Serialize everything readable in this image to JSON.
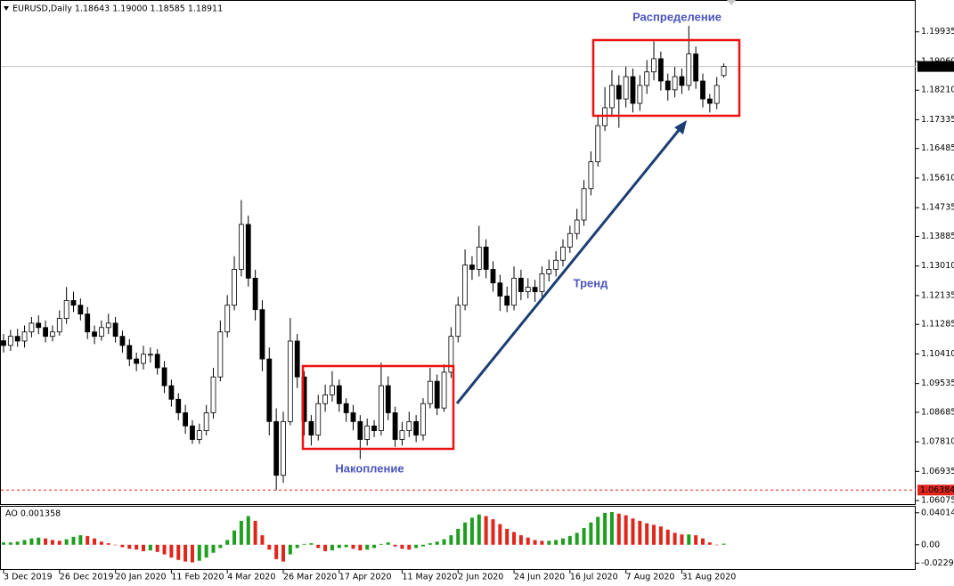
{
  "chart_data": {
    "type": "candlestick",
    "title": "EURUSD,Daily  1.18643 1.19000 1.18585 1.18911",
    "open": [
      1.108,
      1.1066,
      1.1093,
      1.1079,
      1.1106,
      1.1132,
      1.1119,
      1.1093,
      1.1106,
      1.1146,
      1.1199,
      1.1185,
      1.1159,
      1.1106,
      1.1093,
      1.1119,
      1.1132,
      1.1093,
      1.1066,
      1.1026,
      1.1013,
      1.104,
      1.104,
      1.1,
      1.0947,
      1.0907,
      1.0867,
      1.0828,
      1.0788,
      1.0814,
      1.0867,
      1.0973,
      1.1106,
      1.1185,
      1.1291,
      1.1424,
      1.1265,
      1.1172,
      1.1026,
      1.0841,
      1.0682,
      1.0841,
      1.1079,
      1.0973,
      1.0841,
      1.0801,
      1.0894,
      1.092,
      1.0947,
      1.0894,
      1.0867,
      1.0841,
      1.0788,
      1.0828,
      1.0814,
      1.0947,
      1.0867,
      1.0788,
      1.0814,
      1.0841,
      1.0801,
      1.0894,
      1.096,
      1.0881,
      1.0987,
      1.1093,
      1.1185,
      1.1304,
      1.1291,
      1.1357,
      1.1291,
      1.1251,
      1.1212,
      1.1185,
      1.1265,
      1.1225,
      1.1238,
      1.1225,
      1.1278,
      1.1291,
      1.1318,
      1.1357,
      1.1397,
      1.1437,
      1.153,
      1.1609,
      1.1716,
      1.1769,
      1.1835,
      1.1795,
      1.1861,
      1.1782,
      1.1835,
      1.1875,
      1.1914,
      1.1848,
      1.1822,
      1.1861,
      1.1835,
      1.1928,
      1.1848,
      1.1795,
      1.1782,
      1.18643
    ],
    "high": [
      1.11,
      1.1112,
      1.1115,
      1.1125,
      1.115,
      1.1155,
      1.114,
      1.1125,
      1.117,
      1.1239,
      1.1225,
      1.1205,
      1.118,
      1.1125,
      1.114,
      1.116,
      1.115,
      1.111,
      1.1085,
      1.1045,
      1.1065,
      1.106,
      1.1055,
      1.102,
      1.0965,
      1.0925,
      1.089,
      1.0845,
      1.0835,
      1.089,
      1.1,
      1.114,
      1.1215,
      1.133,
      1.1496,
      1.145,
      1.129,
      1.12,
      1.106,
      1.088,
      1.087,
      1.1147,
      1.11,
      1.099,
      1.086,
      1.092,
      1.095,
      1.099,
      1.0965,
      1.091,
      1.089,
      1.086,
      1.085,
      1.0845,
      1.1015,
      1.0975,
      1.0885,
      1.084,
      1.087,
      1.086,
      1.091,
      1.1,
      1.098,
      1.101,
      1.112,
      1.121,
      1.135,
      1.133,
      1.142,
      1.138,
      1.1315,
      1.1275,
      1.124,
      1.13,
      1.129,
      1.1265,
      1.126,
      1.13,
      1.132,
      1.1345,
      1.138,
      1.142,
      1.147,
      1.1555,
      1.164,
      1.1745,
      1.183,
      1.188,
      1.1865,
      1.189,
      1.1885,
      1.1865,
      1.191,
      1.1965,
      1.1935,
      1.187,
      1.189,
      1.1885,
      1.2011,
      1.195,
      1.187,
      1.181,
      1.186,
      1.19
    ],
    "low": [
      1.1045,
      1.105,
      1.1062,
      1.106,
      1.109,
      1.11,
      1.1075,
      1.1078,
      1.1095,
      1.113,
      1.1165,
      1.114,
      1.1085,
      1.107,
      1.108,
      1.11,
      1.1075,
      1.1045,
      1.1005,
      1.099,
      1.0995,
      1.1015,
      1.098,
      1.0925,
      1.0885,
      1.0845,
      1.0805,
      1.0775,
      1.0775,
      1.08,
      1.085,
      1.096,
      1.109,
      1.117,
      1.127,
      1.124,
      1.114,
      1.099,
      1.08,
      1.06384,
      1.066,
      1.083,
      1.094,
      1.08,
      1.077,
      1.0785,
      1.087,
      1.09,
      1.087,
      1.084,
      1.0815,
      1.073,
      1.077,
      1.0795,
      1.08,
      1.0845,
      1.0766,
      1.077,
      1.0795,
      1.078,
      1.0785,
      1.088,
      1.086,
      1.087,
      1.097,
      1.1075,
      1.117,
      1.126,
      1.127,
      1.1265,
      1.1225,
      1.1168,
      1.1165,
      1.117,
      1.12,
      1.1205,
      1.1195,
      1.121,
      1.1255,
      1.127,
      1.13,
      1.134,
      1.138,
      1.142,
      1.151,
      1.1595,
      1.17,
      1.1745,
      1.171,
      1.177,
      1.1755,
      1.176,
      1.181,
      1.185,
      1.182,
      1.179,
      1.18,
      1.181,
      1.182,
      1.1825,
      1.177,
      1.1755,
      1.1765,
      1.18585
    ],
    "close": [
      1.1066,
      1.1093,
      1.1079,
      1.1106,
      1.1132,
      1.1119,
      1.1093,
      1.1106,
      1.1146,
      1.1199,
      1.1185,
      1.1159,
      1.1106,
      1.1093,
      1.1119,
      1.1132,
      1.1093,
      1.1066,
      1.1026,
      1.1013,
      1.104,
      1.104,
      1.1,
      1.0947,
      1.0907,
      1.0867,
      1.0828,
      1.0788,
      1.0814,
      1.0867,
      1.0973,
      1.1106,
      1.1185,
      1.1291,
      1.1424,
      1.1265,
      1.1172,
      1.1026,
      1.0841,
      1.0682,
      1.0841,
      1.1079,
      1.0973,
      1.0841,
      1.0801,
      1.0894,
      1.092,
      1.0947,
      1.0894,
      1.0867,
      1.0841,
      1.0788,
      1.0828,
      1.0814,
      1.0947,
      1.0867,
      1.0788,
      1.0814,
      1.0841,
      1.0801,
      1.0894,
      1.096,
      1.0881,
      1.0987,
      1.1093,
      1.1185,
      1.1304,
      1.1291,
      1.1357,
      1.1291,
      1.1251,
      1.1212,
      1.1185,
      1.1265,
      1.1225,
      1.1238,
      1.1225,
      1.1278,
      1.1291,
      1.1318,
      1.1357,
      1.1397,
      1.1437,
      1.153,
      1.1609,
      1.1716,
      1.1769,
      1.1835,
      1.1795,
      1.1861,
      1.1782,
      1.1835,
      1.1875,
      1.1914,
      1.1848,
      1.1822,
      1.1861,
      1.1835,
      1.1928,
      1.1848,
      1.1795,
      1.1782,
      1.1835,
      1.18911
    ],
    "up_color": "#ffffff",
    "down_color": "#000000",
    "ylim": [
      1.0597,
      1.2085
    ],
    "yticks": [
      1.19935,
      {
        "value": 1.1906,
        "label": "1.19060"
      },
      {
        "value": 1.1821,
        "label": "1.18210"
      },
      1.17335,
      1.16485,
      {
        "value": 1.1561,
        "label": "1.15610"
      },
      1.14735,
      1.13885,
      {
        "value": 1.1301,
        "label": "1.13010"
      },
      1.12135,
      1.11285,
      {
        "value": 1.1041,
        "label": "1.10410"
      },
      1.09535,
      1.08685,
      {
        "value": 1.0781,
        "label": "1.07810"
      },
      1.06935,
      1.06075
    ],
    "xticks": [
      {
        "value": 0,
        "label": "3 Dec 2019"
      },
      {
        "value": 8,
        "label": "26 Dec 2019"
      },
      {
        "value": 16,
        "label": "20 Jan 2020"
      },
      {
        "value": 24,
        "label": "11 Feb 2020"
      },
      {
        "value": 32,
        "label": "4 Mar 2020"
      },
      {
        "value": 40,
        "label": "26 Mar 2020"
      },
      {
        "value": 48,
        "label": "17 Apr 2020"
      },
      {
        "value": 57,
        "label": "11 May 2020"
      },
      {
        "value": 65,
        "label": "2 Jun 2020"
      },
      {
        "value": 73,
        "label": "24 Jun 2020"
      },
      {
        "value": 81,
        "label": "16 Jul 2020"
      },
      {
        "value": 89,
        "label": "7 Aug 2020"
      },
      {
        "value": 97,
        "label": "31 Aug 2020"
      }
    ],
    "price_line": {
      "value": 1.18911,
      "label": "1.18911",
      "color": "#c0c0c0"
    },
    "low_line": {
      "value": 1.06384,
      "label": "1.06384",
      "color": "#e0261b"
    },
    "annotations": [
      "Распределение",
      "Тренд",
      "Накопление"
    ],
    "indicator": {
      "type": "bar",
      "title": "AO 0.001358",
      "values": [
        0.003,
        0.003,
        0.004,
        0.006,
        0.008,
        0.009,
        0.008,
        0.006,
        0.005,
        0.007,
        0.01,
        0.012,
        0.011,
        0.008,
        0.004,
        0.002,
        0.0,
        -0.003,
        -0.005,
        -0.006,
        -0.008,
        -0.007,
        -0.009,
        -0.012,
        -0.016,
        -0.019,
        -0.021,
        -0.022,
        -0.02,
        -0.016,
        -0.01,
        -0.004,
        0.006,
        0.018,
        0.03,
        0.036,
        0.03,
        0.012,
        -0.006,
        -0.018,
        -0.021,
        -0.012,
        -0.004,
        0.001,
        0.002,
        -0.004,
        -0.008,
        -0.007,
        -0.004,
        -0.003,
        -0.005,
        -0.007,
        -0.006,
        -0.004,
        0.001,
        0.003,
        -0.002,
        -0.005,
        -0.006,
        -0.004,
        -0.002,
        0.002,
        0.004,
        0.007,
        0.012,
        0.02,
        0.028,
        0.034,
        0.038,
        0.036,
        0.032,
        0.026,
        0.02,
        0.016,
        0.012,
        0.009,
        0.006,
        0.005,
        0.005,
        0.006,
        0.008,
        0.011,
        0.015,
        0.021,
        0.028,
        0.035,
        0.04,
        0.041,
        0.039,
        0.037,
        0.033,
        0.03,
        0.027,
        0.025,
        0.023,
        0.019,
        0.015,
        0.013,
        0.013,
        0.012,
        0.008,
        0.003,
        0.0,
        0.001358
      ],
      "up_color": "#1f9e1f",
      "down_color": "#e0261b",
      "ylim": [
        -0.0304,
        0.0477
      ],
      "yticks": [
        0.040141,
        {
          "value": 0,
          "label": "0.00"
        },
        -0.02291
      ]
    }
  }
}
